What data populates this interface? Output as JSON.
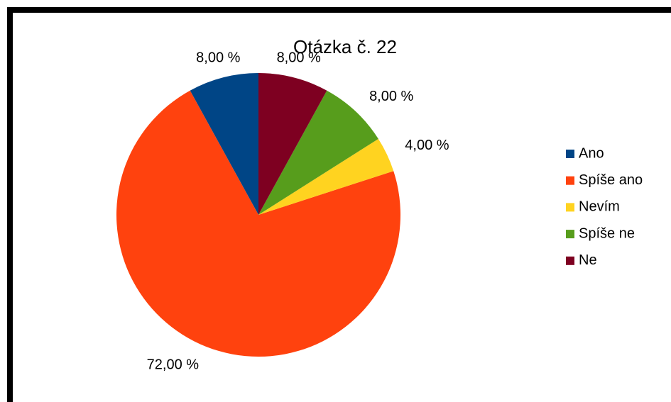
{
  "chart_data": {
    "type": "pie",
    "title": "Otázka č. 22",
    "categories": [
      "Ano",
      "Spíše ano",
      "Nevím",
      "Spíše ne",
      "Ne"
    ],
    "values": [
      8,
      72,
      4,
      8,
      8
    ],
    "value_labels": [
      "8,00 %",
      "72,00 %",
      "4,00 %",
      "8,00 %",
      "8,00 %"
    ],
    "colors": [
      "#004586",
      "#ff420e",
      "#ffd320",
      "#579d1c",
      "#7e0021"
    ],
    "legend": "right"
  }
}
